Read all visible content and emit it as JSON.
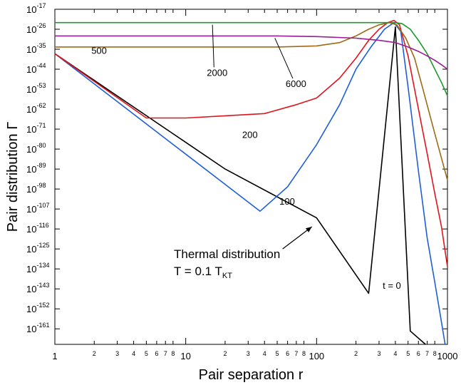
{
  "chart_data": {
    "type": "line",
    "xlabel": "Pair separation r",
    "ylabel": "Pair distribution Γ",
    "x_scale": "log",
    "y_scale": "log",
    "xlim": [
      1,
      1000
    ],
    "ylim_log10": [
      -168,
      -17
    ],
    "x_major_ticks": [
      {
        "v": 1,
        "label": "1"
      },
      {
        "v": 10,
        "label": "10"
      },
      {
        "v": 100,
        "label": "100"
      },
      {
        "v": 1000,
        "label": "1000"
      }
    ],
    "x_minor_ticks": [
      {
        "v": 2,
        "label": "2"
      },
      {
        "v": 3,
        "label": "3"
      },
      {
        "v": 4,
        "label": "4"
      },
      {
        "v": 5,
        "label": "5"
      },
      {
        "v": 6,
        "label": "6"
      },
      {
        "v": 7,
        "label": "7"
      },
      {
        "v": 8,
        "label": "8"
      },
      {
        "v": 20,
        "label": "2"
      },
      {
        "v": 30,
        "label": "3"
      },
      {
        "v": 40,
        "label": "4"
      },
      {
        "v": 50,
        "label": "5"
      },
      {
        "v": 60,
        "label": "6"
      },
      {
        "v": 70,
        "label": "7"
      },
      {
        "v": 80,
        "label": "8"
      },
      {
        "v": 200,
        "label": "2"
      },
      {
        "v": 300,
        "label": "3"
      },
      {
        "v": 400,
        "label": "4"
      },
      {
        "v": 500,
        "label": "5"
      },
      {
        "v": 600,
        "label": "6"
      },
      {
        "v": 700,
        "label": "7"
      },
      {
        "v": 800,
        "label": "8"
      }
    ],
    "y_ticks": [
      {
        "exp": -17,
        "base": "10",
        "pow": "-17"
      },
      {
        "exp": -26,
        "base": "10",
        "pow": "-26"
      },
      {
        "exp": -35,
        "base": "10",
        "pow": "-35"
      },
      {
        "exp": -44,
        "base": "10",
        "pow": "-44"
      },
      {
        "exp": -53,
        "base": "10",
        "pow": "-53"
      },
      {
        "exp": -62,
        "base": "10",
        "pow": "-62"
      },
      {
        "exp": -71,
        "base": "10",
        "pow": "-71"
      },
      {
        "exp": -80,
        "base": "10",
        "pow": "-80"
      },
      {
        "exp": -89,
        "base": "10",
        "pow": "-89"
      },
      {
        "exp": -98,
        "base": "10",
        "pow": "-98"
      },
      {
        "exp": -107,
        "base": "10",
        "pow": "-107"
      },
      {
        "exp": -116,
        "base": "10",
        "pow": "-116"
      },
      {
        "exp": -125,
        "base": "10",
        "pow": "-125"
      },
      {
        "exp": -134,
        "base": "10",
        "pow": "-134"
      },
      {
        "exp": -143,
        "base": "10",
        "pow": "-143"
      },
      {
        "exp": -152,
        "base": "10",
        "pow": "-152"
      },
      {
        "exp": -161,
        "base": "10",
        "pow": "-161"
      }
    ],
    "series": [
      {
        "name": "t = 0",
        "color": "#000000",
        "points": [
          [
            1,
            -37
          ],
          [
            20,
            -89
          ],
          [
            100,
            -111
          ],
          [
            250,
            -145
          ],
          [
            400,
            -25
          ],
          [
            520,
            -162
          ],
          [
            650,
            -167
          ],
          [
            680,
            -168
          ]
        ]
      },
      {
        "name": "100",
        "color": "#1f5fd6",
        "points": [
          [
            1,
            -37
          ],
          [
            37,
            -108
          ],
          [
            60,
            -97
          ],
          [
            100,
            -78
          ],
          [
            150,
            -60
          ],
          [
            200,
            -44
          ],
          [
            260,
            -34
          ],
          [
            330,
            -26
          ],
          [
            390,
            -23
          ],
          [
            440,
            -27
          ],
          [
            500,
            -52
          ],
          [
            600,
            -90
          ],
          [
            700,
            -120
          ],
          [
            800,
            -140
          ],
          [
            900,
            -158
          ],
          [
            960,
            -168
          ]
        ]
      },
      {
        "name": "200",
        "color": "#e0141c",
        "points": [
          [
            1,
            -37
          ],
          [
            5,
            -66
          ],
          [
            10,
            -66
          ],
          [
            20,
            -65
          ],
          [
            40,
            -64
          ],
          [
            70,
            -60
          ],
          [
            100,
            -57
          ],
          [
            150,
            -48
          ],
          [
            200,
            -39
          ],
          [
            250,
            -31
          ],
          [
            300,
            -26
          ],
          [
            350,
            -23
          ],
          [
            390,
            -22
          ],
          [
            430,
            -24
          ],
          [
            500,
            -38
          ],
          [
            600,
            -62
          ],
          [
            700,
            -82
          ],
          [
            800,
            -100
          ],
          [
            900,
            -115
          ],
          [
            1000,
            -133
          ]
        ]
      },
      {
        "name": "500",
        "color": "#a06a14",
        "points": [
          [
            1,
            -34
          ],
          [
            5,
            -34
          ],
          [
            10,
            -34
          ],
          [
            50,
            -34
          ],
          [
            100,
            -33.5
          ],
          [
            150,
            -32
          ],
          [
            200,
            -29
          ],
          [
            250,
            -26
          ],
          [
            300,
            -24
          ],
          [
            360,
            -23
          ],
          [
            410,
            -24
          ],
          [
            480,
            -30
          ],
          [
            560,
            -39
          ],
          [
            650,
            -53
          ],
          [
            800,
            -73
          ],
          [
            1000,
            -94
          ]
        ]
      },
      {
        "name": "2000",
        "color": "#1b9a2a",
        "points": [
          [
            1,
            -23
          ],
          [
            10,
            -23
          ],
          [
            100,
            -23
          ],
          [
            200,
            -23
          ],
          [
            300,
            -23
          ],
          [
            400,
            -23
          ],
          [
            450,
            -23.5
          ],
          [
            520,
            -26
          ],
          [
            600,
            -31
          ],
          [
            700,
            -37
          ],
          [
            800,
            -44
          ],
          [
            900,
            -50
          ],
          [
            1000,
            -56
          ]
        ]
      },
      {
        "name": "6000",
        "color": "#9a1d96",
        "points": [
          [
            1,
            -29
          ],
          [
            10,
            -29
          ],
          [
            50,
            -29
          ],
          [
            100,
            -29.3
          ],
          [
            200,
            -30
          ],
          [
            300,
            -31
          ],
          [
            400,
            -32
          ],
          [
            500,
            -34
          ],
          [
            600,
            -36
          ],
          [
            700,
            -38
          ],
          [
            800,
            -40
          ],
          [
            900,
            -42
          ],
          [
            1000,
            -44
          ]
        ]
      }
    ],
    "annotations": [
      {
        "text": "500",
        "x": 1.9,
        "y": -37
      },
      {
        "text": "2000",
        "x": 14.5,
        "y": -47,
        "arrow_to": [
          16,
          -24
        ]
      },
      {
        "text": "6000",
        "x": 58,
        "y": -52,
        "arrow_to": [
          48,
          -30
        ]
      },
      {
        "text": "200",
        "x": 27,
        "y": -75
      },
      {
        "text": "100",
        "x": 52,
        "y": -105
      },
      {
        "text": "t = 0",
        "x": 320,
        "y": -143
      }
    ],
    "thermal_label": {
      "line1": "Thermal distribution",
      "line2_prefix": "T = 0.1 T",
      "line2_sub": "KT",
      "arrow_from": [
        55,
        -125
      ],
      "arrow_to": [
        92,
        -115
      ]
    }
  }
}
